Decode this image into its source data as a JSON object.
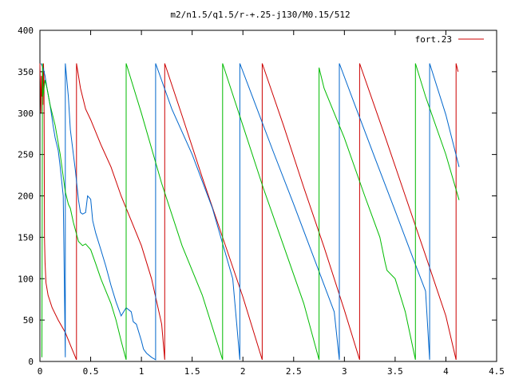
{
  "chart_data": {
    "type": "line",
    "title": "m2/n1.5/q1.5/r-+.25-j130/M0.15/512",
    "xlabel": "",
    "ylabel": "",
    "xlim": [
      0,
      4.5
    ],
    "ylim": [
      0,
      400
    ],
    "x_ticks": [
      0,
      0.5,
      1,
      1.5,
      2,
      2.5,
      3,
      3.5,
      4,
      4.5
    ],
    "x_tick_labels": [
      "0",
      "0.5",
      "1",
      "1.5",
      "2",
      "2.5",
      "3",
      "3.5",
      "4",
      "4.5"
    ],
    "y_ticks": [
      0,
      50,
      100,
      150,
      200,
      250,
      300,
      350,
      400
    ],
    "y_tick_labels": [
      "0",
      "50",
      "100",
      "150",
      "200",
      "250",
      "300",
      "350",
      "400"
    ],
    "grid": false,
    "legend": {
      "position": "top-right",
      "entries": [
        "fort.23"
      ]
    },
    "series": [
      {
        "name": "fort.23",
        "color": "#cc0000",
        "points": [
          [
            0.0,
            360
          ],
          [
            0.01,
            300
          ],
          [
            0.015,
            345
          ],
          [
            0.02,
            320
          ],
          [
            0.025,
            350
          ],
          [
            0.03,
            310
          ],
          [
            0.035,
            360
          ],
          [
            0.04,
            340
          ],
          [
            0.045,
            150
          ],
          [
            0.05,
            120
          ],
          [
            0.06,
            95
          ],
          [
            0.08,
            80
          ],
          [
            0.12,
            65
          ],
          [
            0.18,
            50
          ],
          [
            0.25,
            35
          ],
          [
            0.3,
            20
          ],
          [
            0.36,
            2
          ],
          [
            0.36,
            360
          ],
          [
            0.4,
            330
          ],
          [
            0.45,
            305
          ],
          [
            0.5,
            292
          ],
          [
            0.6,
            262
          ],
          [
            0.7,
            235
          ],
          [
            0.8,
            200
          ],
          [
            0.9,
            170
          ],
          [
            1.0,
            140
          ],
          [
            1.1,
            100
          ],
          [
            1.2,
            45
          ],
          [
            1.23,
            2
          ],
          [
            1.23,
            360
          ],
          [
            1.4,
            297
          ],
          [
            1.6,
            222
          ],
          [
            1.8,
            150
          ],
          [
            2.0,
            78
          ],
          [
            2.19,
            2
          ],
          [
            2.19,
            360
          ],
          [
            2.4,
            285
          ],
          [
            2.6,
            210
          ],
          [
            2.8,
            138
          ],
          [
            3.0,
            62
          ],
          [
            3.15,
            2
          ],
          [
            3.15,
            360
          ],
          [
            3.4,
            272
          ],
          [
            3.6,
            200
          ],
          [
            3.8,
            128
          ],
          [
            4.0,
            55
          ],
          [
            4.1,
            2
          ],
          [
            4.1,
            360
          ],
          [
            4.12,
            350
          ]
        ]
      },
      {
        "name": "",
        "color": "#0066cc",
        "points": [
          [
            0.01,
            360
          ],
          [
            0.03,
            355
          ],
          [
            0.05,
            345
          ],
          [
            0.07,
            330
          ],
          [
            0.1,
            310
          ],
          [
            0.13,
            285
          ],
          [
            0.15,
            270
          ],
          [
            0.18,
            255
          ],
          [
            0.2,
            235
          ],
          [
            0.23,
            200
          ],
          [
            0.25,
            5
          ],
          [
            0.25,
            360
          ],
          [
            0.28,
            320
          ],
          [
            0.3,
            280
          ],
          [
            0.35,
            230
          ],
          [
            0.38,
            195
          ],
          [
            0.4,
            180
          ],
          [
            0.42,
            178
          ],
          [
            0.45,
            180
          ],
          [
            0.47,
            200
          ],
          [
            0.5,
            196
          ],
          [
            0.52,
            170
          ],
          [
            0.55,
            155
          ],
          [
            0.6,
            135
          ],
          [
            0.65,
            115
          ],
          [
            0.7,
            92
          ],
          [
            0.75,
            72
          ],
          [
            0.78,
            62
          ],
          [
            0.8,
            55
          ],
          [
            0.85,
            65
          ],
          [
            0.9,
            60
          ],
          [
            0.92,
            48
          ],
          [
            0.95,
            45
          ],
          [
            1.0,
            25
          ],
          [
            1.02,
            15
          ],
          [
            1.05,
            10
          ],
          [
            1.1,
            5
          ],
          [
            1.14,
            2
          ],
          [
            1.14,
            360
          ],
          [
            1.3,
            305
          ],
          [
            1.5,
            250
          ],
          [
            1.7,
            185
          ],
          [
            1.9,
            100
          ],
          [
            1.97,
            2
          ],
          [
            1.97,
            360
          ],
          [
            2.1,
            318
          ],
          [
            2.3,
            253
          ],
          [
            2.5,
            190
          ],
          [
            2.7,
            125
          ],
          [
            2.9,
            60
          ],
          [
            2.95,
            2
          ],
          [
            2.95,
            360
          ],
          [
            3.1,
            311
          ],
          [
            3.3,
            246
          ],
          [
            3.5,
            182
          ],
          [
            3.7,
            117
          ],
          [
            3.8,
            85
          ],
          [
            3.84,
            2
          ],
          [
            3.84,
            360
          ],
          [
            4.0,
            298
          ],
          [
            4.13,
            235
          ]
        ]
      },
      {
        "name": "",
        "color": "#00bb00",
        "points": [
          [
            0.02,
            5
          ],
          [
            0.025,
            360
          ],
          [
            0.03,
            320
          ],
          [
            0.05,
            340
          ],
          [
            0.07,
            330
          ],
          [
            0.1,
            310
          ],
          [
            0.15,
            285
          ],
          [
            0.2,
            250
          ],
          [
            0.25,
            205
          ],
          [
            0.28,
            190
          ],
          [
            0.3,
            185
          ],
          [
            0.33,
            168
          ],
          [
            0.38,
            145
          ],
          [
            0.42,
            140
          ],
          [
            0.45,
            142
          ],
          [
            0.5,
            135
          ],
          [
            0.55,
            118
          ],
          [
            0.6,
            100
          ],
          [
            0.7,
            70
          ],
          [
            0.75,
            50
          ],
          [
            0.8,
            25
          ],
          [
            0.85,
            2
          ],
          [
            0.85,
            360
          ],
          [
            1.0,
            300
          ],
          [
            1.2,
            215
          ],
          [
            1.4,
            140
          ],
          [
            1.6,
            80
          ],
          [
            1.8,
            2
          ],
          [
            1.8,
            360
          ],
          [
            2.0,
            285
          ],
          [
            2.2,
            210
          ],
          [
            2.4,
            140
          ],
          [
            2.6,
            70
          ],
          [
            2.75,
            2
          ],
          [
            2.75,
            355
          ],
          [
            2.76,
            350
          ],
          [
            2.8,
            330
          ],
          [
            3.0,
            270
          ],
          [
            3.2,
            200
          ],
          [
            3.35,
            150
          ],
          [
            3.4,
            120
          ],
          [
            3.42,
            110
          ],
          [
            3.5,
            100
          ],
          [
            3.6,
            60
          ],
          [
            3.7,
            2
          ],
          [
            3.7,
            360
          ],
          [
            3.8,
            320
          ],
          [
            4.0,
            250
          ],
          [
            4.13,
            195
          ]
        ]
      }
    ]
  }
}
